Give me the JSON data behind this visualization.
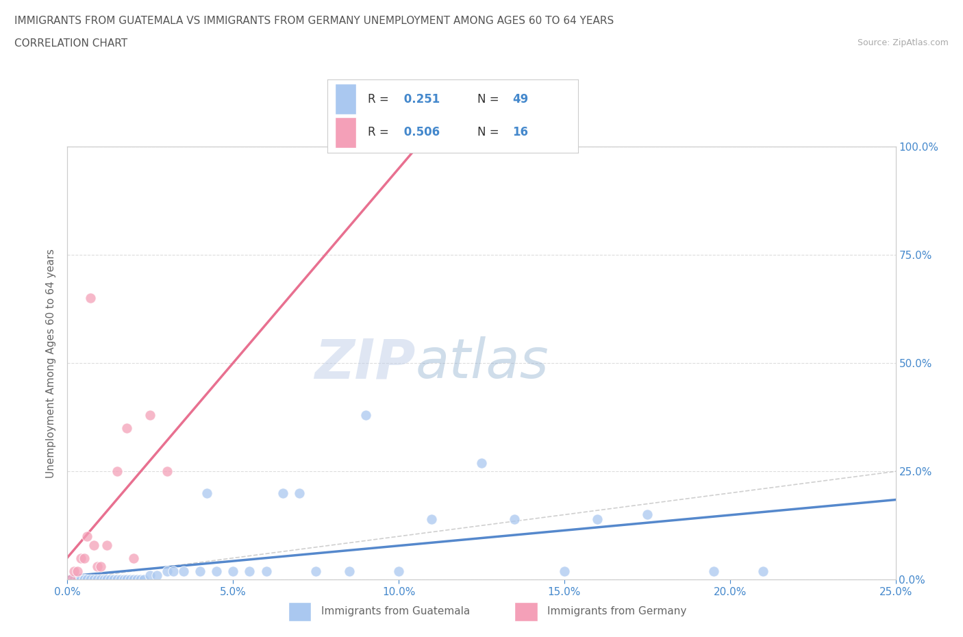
{
  "title_line1": "IMMIGRANTS FROM GUATEMALA VS IMMIGRANTS FROM GERMANY UNEMPLOYMENT AMONG AGES 60 TO 64 YEARS",
  "title_line2": "CORRELATION CHART",
  "source_text": "Source: ZipAtlas.com",
  "ylabel": "Unemployment Among Ages 60 to 64 years",
  "xlim": [
    0.0,
    0.25
  ],
  "ylim": [
    0.0,
    1.0
  ],
  "xticks": [
    0.0,
    0.05,
    0.1,
    0.15,
    0.2,
    0.25
  ],
  "yticks": [
    0.0,
    0.25,
    0.5,
    0.75,
    1.0
  ],
  "guatemala_color": "#aac8f0",
  "germany_color": "#f4a0b8",
  "guatemala_line_color": "#5588cc",
  "germany_line_color": "#e87090",
  "R_guatemala": 0.251,
  "N_guatemala": 49,
  "R_germany": 0.506,
  "N_germany": 16,
  "watermark_zip": "ZIP",
  "watermark_atlas": "atlas",
  "legend_label_guatemala": "Immigrants from Guatemala",
  "legend_label_germany": "Immigrants from Germany",
  "guatemala_x": [
    0.001,
    0.002,
    0.003,
    0.004,
    0.005,
    0.005,
    0.006,
    0.007,
    0.008,
    0.009,
    0.01,
    0.011,
    0.012,
    0.013,
    0.014,
    0.015,
    0.016,
    0.017,
    0.018,
    0.019,
    0.02,
    0.021,
    0.022,
    0.023,
    0.025,
    0.027,
    0.03,
    0.032,
    0.035,
    0.04,
    0.042,
    0.045,
    0.05,
    0.055,
    0.06,
    0.065,
    0.07,
    0.075,
    0.085,
    0.09,
    0.1,
    0.11,
    0.125,
    0.135,
    0.15,
    0.16,
    0.175,
    0.195,
    0.21
  ],
  "guatemala_y": [
    0.0,
    0.0,
    0.0,
    0.0,
    0.0,
    0.0,
    0.0,
    0.0,
    0.0,
    0.0,
    0.0,
    0.0,
    0.0,
    0.0,
    0.0,
    0.0,
    0.0,
    0.0,
    0.0,
    0.0,
    0.0,
    0.0,
    0.0,
    0.0,
    0.01,
    0.01,
    0.02,
    0.02,
    0.02,
    0.02,
    0.2,
    0.02,
    0.02,
    0.02,
    0.02,
    0.2,
    0.2,
    0.02,
    0.02,
    0.38,
    0.02,
    0.14,
    0.27,
    0.14,
    0.02,
    0.14,
    0.15,
    0.02,
    0.02
  ],
  "germany_x": [
    0.001,
    0.002,
    0.003,
    0.004,
    0.005,
    0.006,
    0.007,
    0.008,
    0.009,
    0.01,
    0.012,
    0.015,
    0.018,
    0.02,
    0.025,
    0.03
  ],
  "germany_y": [
    0.0,
    0.02,
    0.02,
    0.05,
    0.05,
    0.1,
    0.65,
    0.08,
    0.03,
    0.03,
    0.08,
    0.25,
    0.35,
    0.05,
    0.38,
    0.25
  ],
  "background_color": "#ffffff",
  "grid_color": "#dddddd",
  "title_color": "#555555",
  "tick_label_color": "#4488cc"
}
